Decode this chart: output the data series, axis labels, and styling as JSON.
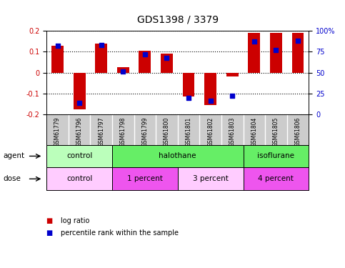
{
  "title": "GDS1398 / 3379",
  "samples": [
    "GSM61779",
    "GSM61796",
    "GSM61797",
    "GSM61798",
    "GSM61799",
    "GSM61800",
    "GSM61801",
    "GSM61802",
    "GSM61803",
    "GSM61804",
    "GSM61805",
    "GSM61806"
  ],
  "log_ratio": [
    0.13,
    -0.175,
    0.14,
    0.025,
    0.105,
    0.09,
    -0.115,
    -0.155,
    -0.02,
    0.19,
    0.19,
    0.19
  ],
  "pct_rank": [
    0.82,
    0.14,
    0.83,
    0.51,
    0.72,
    0.68,
    0.2,
    0.16,
    0.22,
    0.87,
    0.77,
    0.88
  ],
  "bar_color": "#cc0000",
  "dot_color": "#0000cc",
  "ylim": [
    -0.2,
    0.2
  ],
  "yticks_left": [
    -0.2,
    -0.1,
    0.0,
    0.1,
    0.2
  ],
  "ytick_labels_left": [
    "-0.2",
    "-0.1",
    "0",
    "0.1",
    "0.2"
  ],
  "yticks_right_pct": [
    0,
    25,
    50,
    75,
    100
  ],
  "ytick_labels_right": [
    "0",
    "25",
    "50",
    "75",
    "100%"
  ],
  "agent_groups": [
    {
      "label": "control",
      "start": 0,
      "end": 3
    },
    {
      "label": "halothane",
      "start": 3,
      "end": 9
    },
    {
      "label": "isoflurane",
      "start": 9,
      "end": 12
    }
  ],
  "agent_colors": {
    "control": "#bbffbb",
    "halothane": "#66ee66",
    "isoflurane": "#66ee66"
  },
  "dose_groups": [
    {
      "label": "control",
      "start": 0,
      "end": 3
    },
    {
      "label": "1 percent",
      "start": 3,
      "end": 6
    },
    {
      "label": "3 percent",
      "start": 6,
      "end": 9
    },
    {
      "label": "4 percent",
      "start": 9,
      "end": 12
    }
  ],
  "dose_colors": {
    "control": "#ffccff",
    "1 percent": "#ee55ee",
    "3 percent": "#ffccff",
    "4 percent": "#ee55ee"
  },
  "gsm_bg": "#cccccc",
  "legend_items": [
    {
      "label": "log ratio",
      "color": "#cc0000"
    },
    {
      "label": "percentile rank within the sample",
      "color": "#0000cc"
    }
  ],
  "bg_color": "#ffffff",
  "tick_label_color_left": "#cc0000",
  "tick_label_color_right": "#0000cc",
  "title_fontsize": 10,
  "axis_fontsize": 7,
  "label_fontsize": 7.5,
  "legend_fontsize": 7
}
